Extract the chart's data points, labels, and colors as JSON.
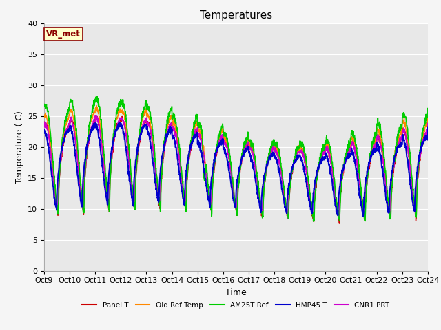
{
  "title": "Temperatures",
  "xlabel": "Time",
  "ylabel": "Temperature (C)",
  "ylim": [
    0,
    40
  ],
  "yticks": [
    0,
    5,
    10,
    15,
    20,
    25,
    30,
    35,
    40
  ],
  "xtick_labels": [
    "Oct 9",
    "Oct 10",
    "Oct 11",
    "Oct 12",
    "Oct 13",
    "Oct 14",
    "Oct 15",
    "Oct 16",
    "Oct 17",
    "Oct 18",
    "Oct 19",
    "Oct 20",
    "Oct 21",
    "Oct 22",
    "Oct 23",
    "Oct 24"
  ],
  "series_colors": [
    "#cc0000",
    "#ff8800",
    "#00cc00",
    "#0000cc",
    "#cc00cc"
  ],
  "series_names": [
    "Panel T",
    "Old Ref Temp",
    "AM25T Ref",
    "HMP45 T",
    "CNR1 PRT"
  ],
  "background_color": "#e8e8e8",
  "grid_color": "#ffffff",
  "annotation_text": "VR_met",
  "annotation_box_facecolor": "#ffffcc",
  "annotation_box_edge": "#8b0000",
  "title_fontsize": 11,
  "axis_label_fontsize": 9,
  "tick_fontsize": 8
}
